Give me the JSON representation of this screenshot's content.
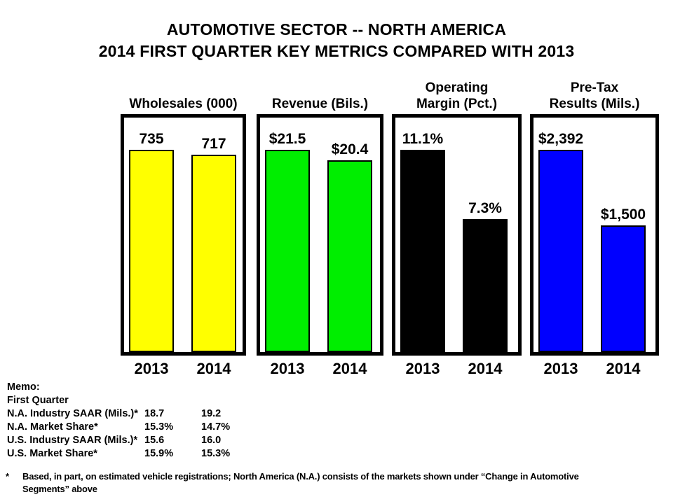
{
  "title": {
    "line1": "AUTOMOTIVE SECTOR -- NORTH AMERICA",
    "line2": "2014 FIRST QUARTER KEY METRICS COMPARED WITH 2013"
  },
  "chart_data": {
    "type": "bar",
    "title": "AUTOMOTIVE SECTOR -- NORTH AMERICA, 2014 FIRST QUARTER KEY METRICS COMPARED WITH 2013",
    "categories": [
      "2013",
      "2014"
    ],
    "baseline": 0,
    "grid": false,
    "legend": "none",
    "panels": [
      {
        "name": "wholesales",
        "title_line1": "",
        "title_line2": "Wholesales (000)",
        "color": "#FFFF00",
        "values": [
          735,
          717
        ],
        "labels": [
          "735",
          "717"
        ]
      },
      {
        "name": "revenue",
        "title_line1": "",
        "title_line2": "Revenue (Bils.)",
        "color": "#00EE00",
        "values": [
          21.5,
          20.4
        ],
        "labels": [
          "$21.5",
          "$20.4"
        ]
      },
      {
        "name": "operating-margin",
        "title_line1": "Operating",
        "title_line2": "Margin (Pct.)",
        "color": "#000000",
        "values": [
          11.1,
          7.3
        ],
        "labels": [
          "11.1%",
          "7.3%"
        ]
      },
      {
        "name": "pretax-results",
        "title_line1": "Pre-Tax",
        "title_line2": "Results (Mils.)",
        "color": "#0000FF",
        "values": [
          2392,
          1500
        ],
        "labels": [
          "$2,392",
          "$1,500"
        ]
      }
    ]
  },
  "memo": {
    "heading": "Memo:",
    "subheading": "First Quarter",
    "rows": [
      {
        "label": "N.A. Industry SAAR (Mils.)*",
        "v2013": "18.7",
        "v2014": "19.2"
      },
      {
        "label": "N.A. Market Share*",
        "v2013": "15.3%",
        "v2014": "14.7%"
      },
      {
        "label": "U.S. Industry SAAR (Mils.)*",
        "v2013": "15.6",
        "v2014": "16.0"
      },
      {
        "label": "U.S. Market Share*",
        "v2013": "15.9%",
        "v2014": "15.3%"
      }
    ]
  },
  "footnote": {
    "marker": "*",
    "line1": "Based, in part, on estimated vehicle registrations;  North America  (N.A.) consists  of the markets shown under “Change in Automotive",
    "line2": "Segments” above"
  }
}
